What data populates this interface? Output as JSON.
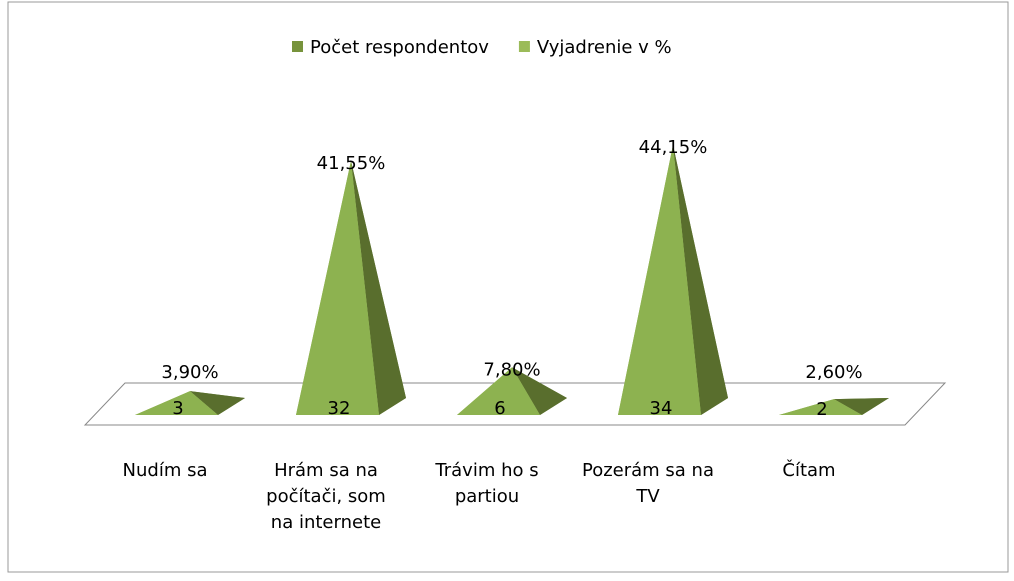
{
  "chart_data": {
    "type": "pyramid3d",
    "categories": [
      "Nudím sa",
      "Hrám sa na počítači, som na internete",
      "Trávim ho s partiou",
      "Pozerám sa na TV",
      "Čítam"
    ],
    "series": [
      {
        "name": "Počet respondentov",
        "color": "#77933c",
        "values": [
          3,
          32,
          6,
          34,
          2
        ]
      },
      {
        "name": "Vyjadrenie v %",
        "color": "#9bbb59",
        "axis": "y2",
        "values": [
          3.9,
          41.55,
          7.8,
          44.15,
          2.6
        ],
        "value_labels": [
          "3,90%",
          "41,55%",
          "7,80%",
          "44,15%",
          "2,60%"
        ]
      }
    ],
    "ylim": [
      0,
      35
    ],
    "y2lim": [
      0,
      45.45
    ],
    "legend": "top"
  }
}
